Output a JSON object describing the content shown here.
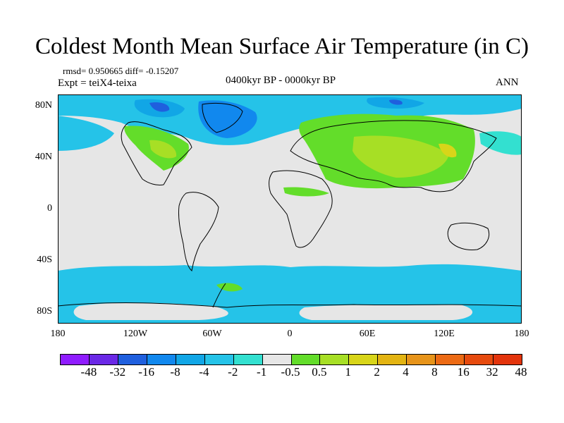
{
  "title": "Coldest Month Mean Surface Air Temperature (in C)",
  "stats": "rmsd= 0.950665 diff= -0.15207",
  "experiment": "Expt = teiX4-teixa",
  "period": "0400kyr BP - 0000kyr BP",
  "season": "ANN",
  "latitude_labels": [
    "80N",
    "40N",
    "0",
    "40S",
    "80S"
  ],
  "longitude_labels": [
    "180",
    "120W",
    "60W",
    "0",
    "60E",
    "120E",
    "180"
  ],
  "colorbar": {
    "colors": [
      "#8f1cff",
      "#6a28e6",
      "#1f5fde",
      "#1188ee",
      "#11a6e6",
      "#25c3e8",
      "#33e0d0",
      "#e6e6e6",
      "#63dd2a",
      "#a7df25",
      "#d8d519",
      "#e3b412",
      "#e7941a",
      "#ec6a14",
      "#e64a0e",
      "#e3340c"
    ],
    "labels": [
      "-48",
      "-32",
      "-16",
      "-8",
      "-4",
      "-2",
      "-1",
      "-0.5",
      "0.5",
      "1",
      "2",
      "4",
      "8",
      "16",
      "32",
      "48"
    ]
  }
}
